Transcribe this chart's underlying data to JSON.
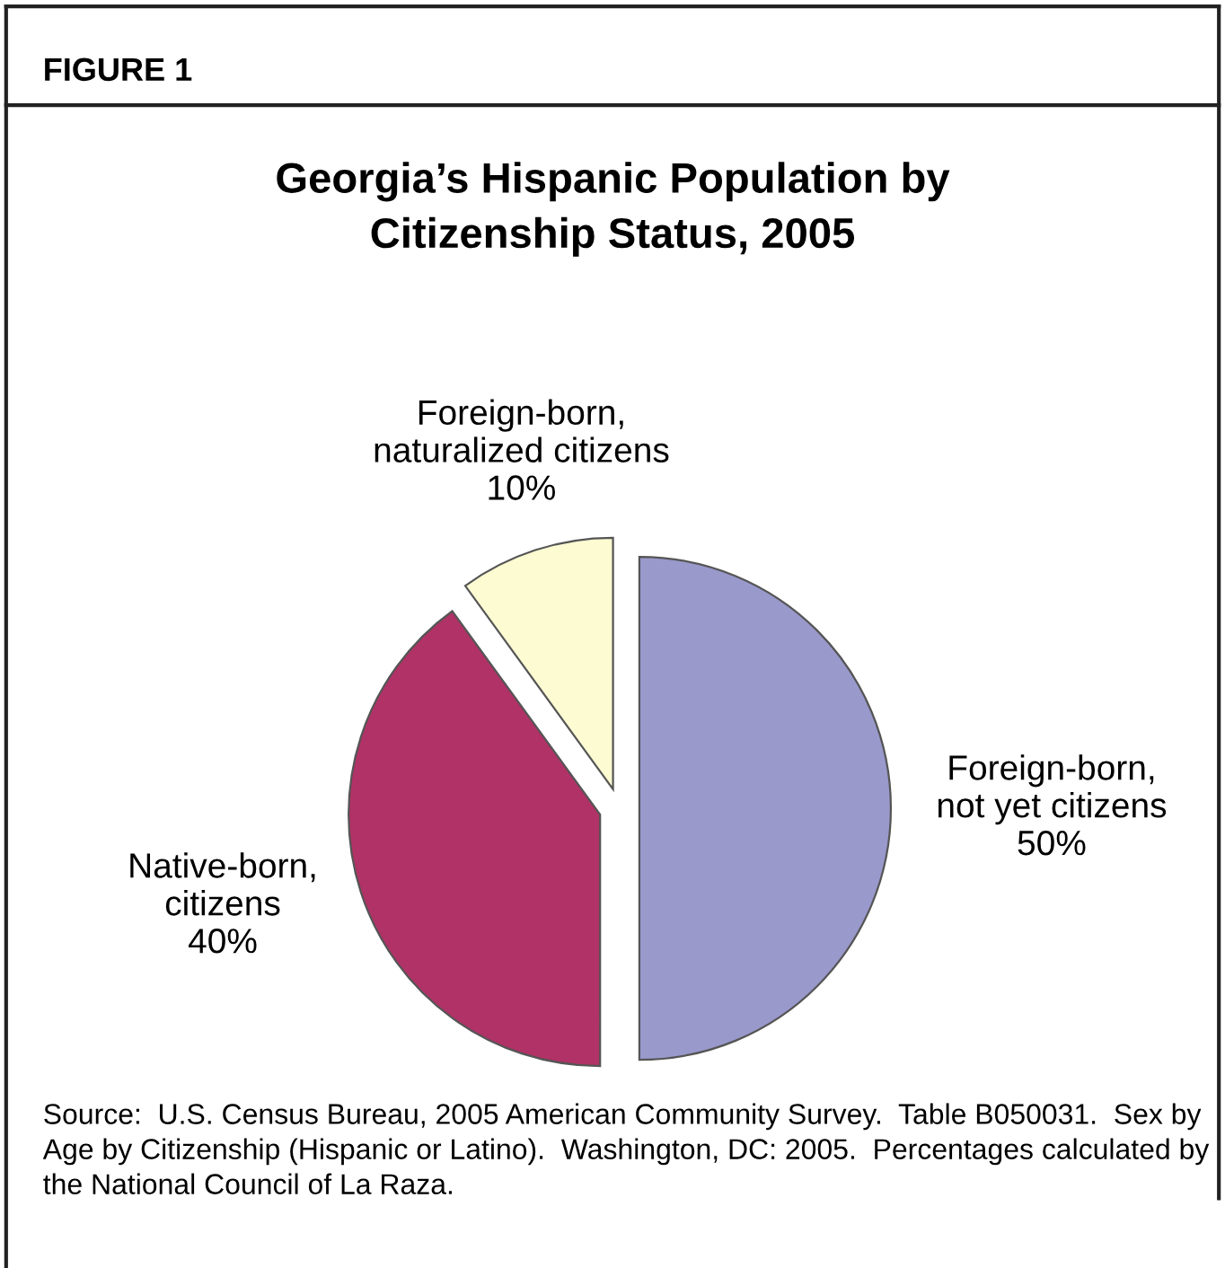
{
  "chart_data": {
    "type": "pie",
    "title": "Georgia’s Hispanic Population by\nCitizenship Status, 2005",
    "categories": [
      "Foreign-born,\nnot yet citizens",
      "Native-born,\ncitizens",
      "Foreign-born,\nnaturalized citizens"
    ],
    "values": [
      50,
      40,
      10
    ],
    "value_labels": [
      "50%",
      "40%",
      "10%"
    ],
    "colors": [
      "#9999cc",
      "#b03266",
      "#fdfbd2"
    ],
    "annotations": [
      "FIGURE 1",
      "Source:  U.S. Census Bureau, 2005 American Community Survey.  Table B050031.  Sex by Age by Citizenship (Hispanic or Latino).  Washington, DC: 2005.  Percentages calculated by the National Council of La Raza."
    ]
  }
}
